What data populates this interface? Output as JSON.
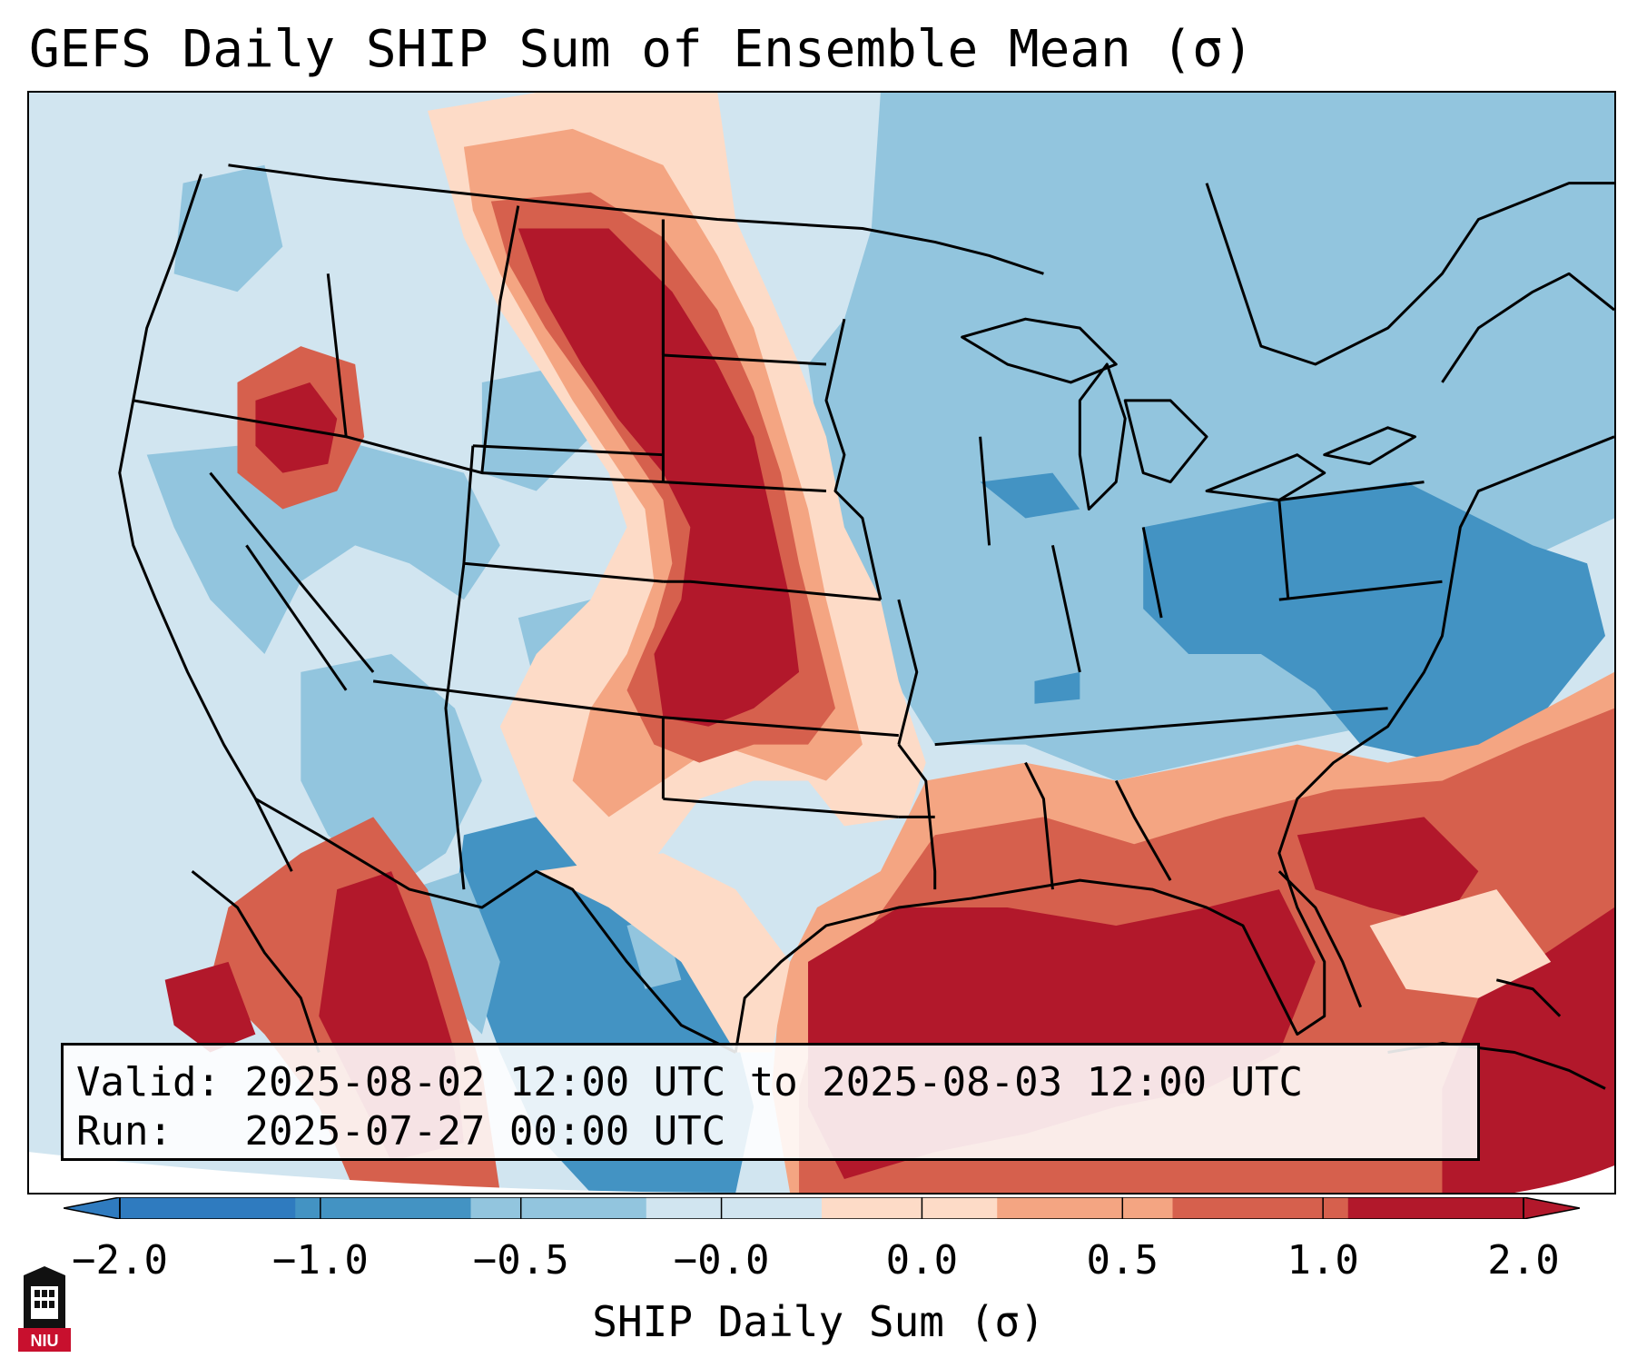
{
  "title": "GEFS Daily SHIP Sum of Ensemble Mean (σ)",
  "info": {
    "valid_label": "Valid:",
    "valid_value": "2025-08-02 12:00 UTC to 2025-08-03 12:00 UTC",
    "run_label": "Run:",
    "run_value": "2025-07-27 00:00 UTC"
  },
  "colorbar": {
    "label": "SHIP Daily Sum (σ)",
    "tick_labels": [
      "−2.0",
      "−1.0",
      "−0.5",
      "−0.0",
      "0.0",
      "0.5",
      "1.0",
      "2.0"
    ],
    "colors": [
      "#2f7bbf",
      "#4393c3",
      "#92c5de",
      "#d1e5f0",
      "#fddbc7",
      "#f4a582",
      "#d6604d",
      "#b2182b"
    ]
  },
  "logo": {
    "text": "NIU"
  },
  "map": {
    "coastline_color": "#000000",
    "background_color": "#d4e6f1"
  }
}
